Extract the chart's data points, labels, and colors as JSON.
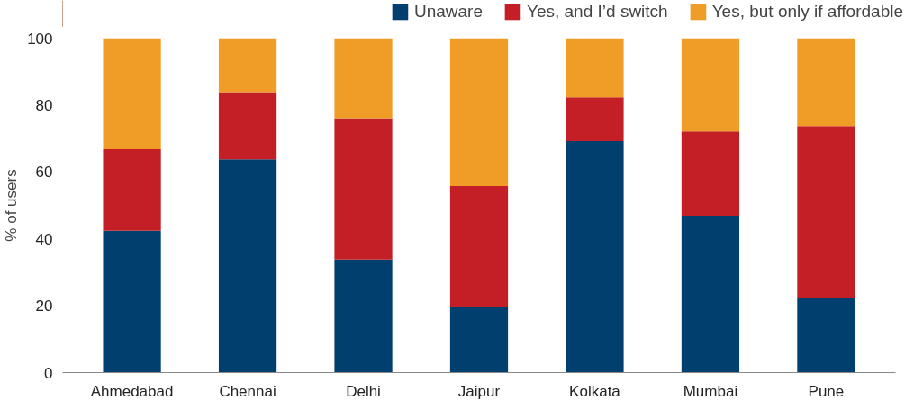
{
  "chart_data": {
    "type": "bar",
    "stacked": true,
    "ylabel": "% of users",
    "categories": [
      "Ahmedabad",
      "Chennai",
      "Delhi",
      "Jaipur",
      "Kolkata",
      "Mumbai",
      "Pune"
    ],
    "series": [
      {
        "name": "Unaware",
        "color": "#003f6e",
        "values": [
          42.4,
          63.8,
          33.8,
          19.6,
          69.2,
          46.9,
          22.3
        ]
      },
      {
        "name": "Yes, and I’d switch",
        "color": "#c41f26",
        "values": [
          24.4,
          20.1,
          42.3,
          36.2,
          13.1,
          25.2,
          51.4
        ]
      },
      {
        "name": "Yes, but only if affordable",
        "color": "#f09d27",
        "values": [
          33.2,
          16.1,
          23.9,
          44.2,
          17.7,
          27.9,
          26.3
        ]
      }
    ],
    "ylim": [
      0,
      100
    ],
    "yticks": [
      0,
      20,
      40,
      60,
      80,
      100
    ],
    "grid": false,
    "legend": "top right"
  }
}
